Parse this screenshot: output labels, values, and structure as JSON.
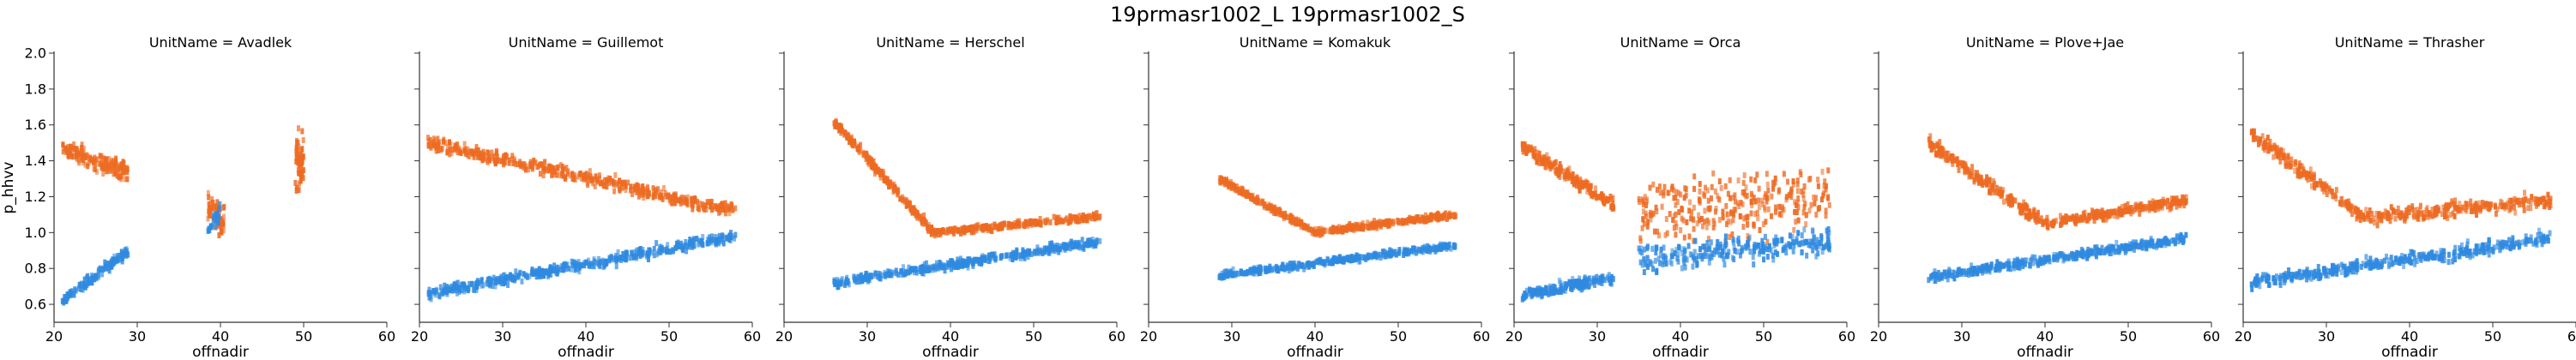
{
  "title": "19prmasr1002_L 19prmasr1002_S",
  "colors": {
    "series_l": "#ed6b22",
    "series_s": "#2f8ae0",
    "axis": "#333333"
  },
  "chart_data": [
    {
      "type": "scatter",
      "title": "UnitName = Avadlek",
      "xlabel": "offnadir",
      "ylabel": "p_hhvv",
      "xlim": [
        20,
        60
      ],
      "ylim": [
        0.5,
        2.0
      ],
      "xticks": [
        "20",
        "30",
        "40",
        "50",
        "60"
      ],
      "yticks": [
        "0.6",
        "0.8",
        "1.0",
        "1.2",
        "1.4",
        "1.6",
        "1.8",
        "2.0"
      ],
      "series": [
        {
          "color": "#ed6b22",
          "clusters": [
            {
              "x": [
                21,
                29
              ],
              "y": [
                1.46,
                1.34
              ],
              "spread": 0.09,
              "count": 150
            },
            {
              "x": [
                38.5,
                40.5
              ],
              "y": [
                1.15,
                1.05
              ],
              "spread": 0.15,
              "count": 60
            },
            {
              "x": [
                49,
                50
              ],
              "y": [
                1.45,
                1.35
              ],
              "spread": 0.28,
              "count": 60
            }
          ]
        },
        {
          "color": "#2f8ae0",
          "clusters": [
            {
              "x": [
                21,
                29
              ],
              "y": [
                0.62,
                0.9
              ],
              "spread": 0.05,
              "count": 120
            },
            {
              "x": [
                38.5,
                40
              ],
              "y": [
                1.0,
                1.1
              ],
              "spread": 0.1,
              "count": 25
            }
          ]
        }
      ]
    },
    {
      "type": "scatter",
      "title": "UnitName = Guillemot",
      "xlabel": "offnadir",
      "ylabel": "",
      "xlim": [
        20,
        60
      ],
      "ylim": [
        0.5,
        2.0
      ],
      "xticks": [
        "20",
        "30",
        "40",
        "50",
        "60"
      ],
      "yticks": [],
      "series": [
        {
          "color": "#ed6b22",
          "clusters": [
            {
              "x": [
                21,
                58
              ],
              "y": [
                1.5,
                1.12
              ],
              "spread": 0.06,
              "count": 450
            }
          ]
        },
        {
          "color": "#2f8ae0",
          "clusters": [
            {
              "x": [
                21,
                58
              ],
              "y": [
                0.66,
                0.98
              ],
              "spread": 0.05,
              "count": 450
            }
          ]
        }
      ]
    },
    {
      "type": "scatter",
      "title": "UnitName = Herschel",
      "xlabel": "offnadir",
      "ylabel": "",
      "xlim": [
        20,
        60
      ],
      "ylim": [
        0.5,
        2.0
      ],
      "xticks": [
        "20",
        "30",
        "40",
        "50",
        "60"
      ],
      "yticks": [],
      "series": [
        {
          "color": "#ed6b22",
          "clusters": [
            {
              "x": [
                26,
                38
              ],
              "y": [
                1.62,
                1.0
              ],
              "spread": 0.04,
              "count": 220
            },
            {
              "x": [
                38,
                58
              ],
              "y": [
                1.0,
                1.09
              ],
              "spread": 0.03,
              "count": 260
            }
          ]
        },
        {
          "color": "#2f8ae0",
          "clusters": [
            {
              "x": [
                26,
                58
              ],
              "y": [
                0.72,
                0.95
              ],
              "spread": 0.04,
              "count": 420
            }
          ]
        }
      ]
    },
    {
      "type": "scatter",
      "title": "UnitName = Komakuk",
      "xlabel": "offnadir",
      "ylabel": "",
      "xlim": [
        20,
        60
      ],
      "ylim": [
        0.5,
        2.0
      ],
      "xticks": [
        "20",
        "30",
        "40",
        "50",
        "60"
      ],
      "yticks": [],
      "series": [
        {
          "color": "#ed6b22",
          "clusters": [
            {
              "x": [
                28.5,
                40
              ],
              "y": [
                1.3,
                1.0
              ],
              "spread": 0.03,
              "count": 180
            },
            {
              "x": [
                40,
                57
              ],
              "y": [
                1.0,
                1.1
              ],
              "spread": 0.03,
              "count": 240
            }
          ]
        },
        {
          "color": "#2f8ae0",
          "clusters": [
            {
              "x": [
                28.5,
                57
              ],
              "y": [
                0.76,
                0.93
              ],
              "spread": 0.03,
              "count": 380
            }
          ]
        }
      ]
    },
    {
      "type": "scatter",
      "title": "UnitName = Orca",
      "xlabel": "offnadir",
      "ylabel": "",
      "xlim": [
        20,
        60
      ],
      "ylim": [
        0.5,
        2.0
      ],
      "xticks": [
        "20",
        "30",
        "40",
        "50",
        "60"
      ],
      "yticks": [],
      "series": [
        {
          "color": "#ed6b22",
          "clusters": [
            {
              "x": [
                21,
                32
              ],
              "y": [
                1.48,
                1.15
              ],
              "spread": 0.06,
              "count": 200
            },
            {
              "x": [
                35,
                58
              ],
              "y": [
                1.1,
                1.2
              ],
              "spread": 0.3,
              "count": 300
            }
          ]
        },
        {
          "color": "#2f8ae0",
          "clusters": [
            {
              "x": [
                21,
                32
              ],
              "y": [
                0.65,
                0.75
              ],
              "spread": 0.05,
              "count": 180
            },
            {
              "x": [
                35,
                58
              ],
              "y": [
                0.85,
                0.95
              ],
              "spread": 0.12,
              "count": 260
            }
          ]
        }
      ]
    },
    {
      "type": "scatter",
      "title": "UnitName = Plove+Jae",
      "xlabel": "offnadir",
      "ylabel": "",
      "xlim": [
        20,
        60
      ],
      "ylim": [
        0.5,
        2.0
      ],
      "xticks": [
        "20",
        "30",
        "40",
        "50",
        "60"
      ],
      "yticks": [],
      "series": [
        {
          "color": "#ed6b22",
          "clusters": [
            {
              "x": [
                26,
                40
              ],
              "y": [
                1.5,
                1.05
              ],
              "spread": 0.06,
              "count": 220
            },
            {
              "x": [
                40,
                57
              ],
              "y": [
                1.05,
                1.18
              ],
              "spread": 0.05,
              "count": 240
            }
          ]
        },
        {
          "color": "#2f8ae0",
          "clusters": [
            {
              "x": [
                26,
                57
              ],
              "y": [
                0.75,
                0.97
              ],
              "spread": 0.04,
              "count": 400
            }
          ]
        }
      ]
    },
    {
      "type": "scatter",
      "title": "UnitName = Thrasher",
      "xlabel": "offnadir",
      "ylabel": "",
      "xlim": [
        20,
        60
      ],
      "ylim": [
        0.5,
        2.0
      ],
      "xticks": [
        "20",
        "30",
        "40",
        "50",
        "60"
      ],
      "yticks": [],
      "series": [
        {
          "color": "#ed6b22",
          "clusters": [
            {
              "x": [
                21,
                34
              ],
              "y": [
                1.55,
                1.1
              ],
              "spread": 0.07,
              "count": 180
            },
            {
              "x": [
                34,
                57
              ],
              "y": [
                1.08,
                1.18
              ],
              "spread": 0.07,
              "count": 260
            }
          ]
        },
        {
          "color": "#2f8ae0",
          "clusters": [
            {
              "x": [
                21,
                57
              ],
              "y": [
                0.72,
                0.97
              ],
              "spread": 0.06,
              "count": 400
            }
          ]
        }
      ]
    }
  ]
}
